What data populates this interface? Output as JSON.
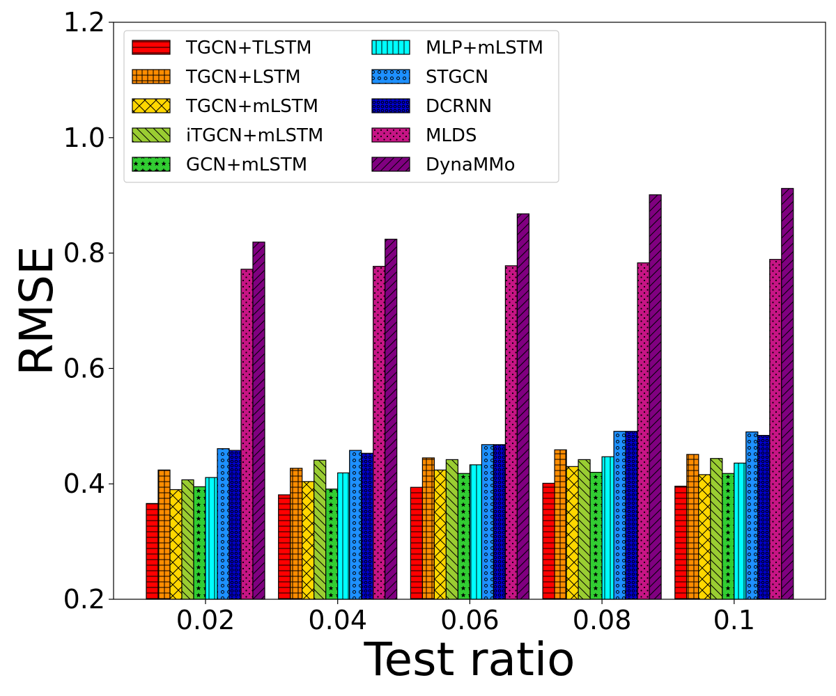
{
  "chart_data": {
    "type": "bar",
    "title": "",
    "xlabel": "Test ratio",
    "ylabel": "RMSE",
    "ylim": [
      0.2,
      1.2
    ],
    "yticks": [
      "0.2",
      "0.4",
      "0.6",
      "0.8",
      "1.0",
      "1.2"
    ],
    "categories": [
      "0.02",
      "0.04",
      "0.06",
      "0.08",
      "0.1"
    ],
    "legend_position": "top-left",
    "series": [
      {
        "name": "TGCN+TLSTM",
        "color": "#ff0000",
        "pattern": "hlines",
        "values": [
          0.366,
          0.381,
          0.394,
          0.401,
          0.396
        ]
      },
      {
        "name": "TGCN+LSTM",
        "color": "#ff8c00",
        "pattern": "grid",
        "values": [
          0.424,
          0.427,
          0.445,
          0.459,
          0.451
        ]
      },
      {
        "name": "TGCN+mLSTM",
        "color": "#ffd700",
        "pattern": "cross",
        "values": [
          0.39,
          0.404,
          0.424,
          0.43,
          0.416
        ]
      },
      {
        "name": "iTGCN+mLSTM",
        "color": "#9acd32",
        "pattern": "backdiag",
        "values": [
          0.407,
          0.441,
          0.442,
          0.442,
          0.444
        ]
      },
      {
        "name": "GCN+mLSTM",
        "color": "#32cd32",
        "pattern": "stars",
        "values": [
          0.395,
          0.391,
          0.418,
          0.42,
          0.418
        ]
      },
      {
        "name": "MLP+mLSTM",
        "color": "#00ffff",
        "pattern": "vlines",
        "values": [
          0.411,
          0.419,
          0.433,
          0.447,
          0.436
        ]
      },
      {
        "name": "STGCN",
        "color": "#1e90ff",
        "pattern": "circles",
        "values": [
          0.461,
          0.458,
          0.468,
          0.491,
          0.49
        ]
      },
      {
        "name": "DCRNN",
        "color": "#0000cd",
        "pattern": "rings",
        "values": [
          0.458,
          0.453,
          0.468,
          0.491,
          0.484
        ]
      },
      {
        "name": "MLDS",
        "color": "#c71585",
        "pattern": "dots",
        "values": [
          0.772,
          0.777,
          0.778,
          0.783,
          0.789
        ]
      },
      {
        "name": "DynaMMo",
        "color": "#800080",
        "pattern": "fwddiag",
        "values": [
          0.819,
          0.824,
          0.868,
          0.901,
          0.912
        ]
      }
    ]
  }
}
